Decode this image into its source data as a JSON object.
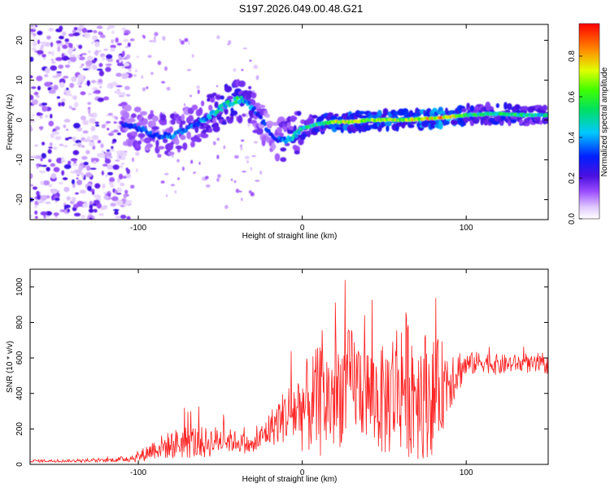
{
  "title": "S197.2026.049.00.48.G21",
  "chart_data": [
    {
      "type": "heatmap",
      "title": "S197.2026.049.00.48.G21",
      "xlabel": "Height of straight line (km)",
      "ylabel": "Frequency (Hz)",
      "xlim": [
        -166,
        150
      ],
      "ylim": [
        -25,
        24
      ],
      "xticks": [
        -100,
        0,
        100
      ],
      "yticks": [
        -20,
        -10,
        0,
        10,
        20
      ],
      "grid": false,
      "colorbar": {
        "label": "Normalized spectral amplitude",
        "range": [
          0,
          0.96
        ],
        "ticks": [
          "0.0",
          "0.2",
          "0.4",
          "0.6",
          "0.8"
        ],
        "colormap": "rainbow (purple to red)"
      },
      "ridge": {
        "description": "dominant frequency trace",
        "x": [
          -110,
          -100,
          -90,
          -80,
          -70,
          -60,
          -50,
          -40,
          -35,
          -30,
          -25,
          -20,
          -15,
          -10,
          -5,
          0,
          10,
          20,
          30,
          40,
          50,
          60,
          70,
          80,
          90,
          100,
          110,
          120,
          130,
          140,
          150
        ],
        "y": [
          -1,
          -2,
          -4,
          -4,
          -2,
          0,
          3,
          5,
          5,
          3,
          0,
          -3,
          -5,
          -5,
          -4,
          -2,
          -1,
          -0.5,
          -0.5,
          0,
          0,
          0,
          0.2,
          0.5,
          0.8,
          1.2,
          1.5,
          1.5,
          1.3,
          1.2,
          1.2
        ],
        "peak_amplitude": [
          0.3,
          0.35,
          0.35,
          0.4,
          0.35,
          0.45,
          0.5,
          0.6,
          0.5,
          0.4,
          0.35,
          0.3,
          0.35,
          0.45,
          0.5,
          0.55,
          0.6,
          0.8,
          0.75,
          0.7,
          0.8,
          0.75,
          0.8,
          0.85,
          0.9,
          0.6,
          0.55,
          0.6,
          0.6,
          0.55,
          0.5
        ]
      },
      "noise_region": {
        "x_range": [
          -166,
          -105
        ],
        "y_range": [
          -25,
          24
        ]
      }
    },
    {
      "type": "line",
      "xlabel": "Height of straight line (km)",
      "ylabel": "SNR (10 * v/v)",
      "xlim": [
        -166,
        150
      ],
      "ylim": [
        0,
        1100
      ],
      "xticks": [
        -100,
        0,
        100
      ],
      "yticks": [
        0,
        200,
        400,
        600,
        800,
        1000
      ],
      "grid": false,
      "series": [
        {
          "name": "SNR",
          "color": "#ff2020",
          "x": [
            -166,
            -140,
            -120,
            -110,
            -100,
            -90,
            -80,
            -70,
            -60,
            -50,
            -40,
            -30,
            -20,
            -10,
            0,
            10,
            20,
            30,
            40,
            50,
            60,
            70,
            80,
            90,
            100,
            110,
            120,
            130,
            140,
            150
          ],
          "mean": [
            20,
            20,
            22,
            30,
            40,
            90,
            110,
            130,
            120,
            140,
            130,
            100,
            200,
            280,
            320,
            350,
            380,
            480,
            400,
            350,
            480,
            420,
            380,
            500,
            560,
            580,
            560,
            570,
            560,
            560
          ],
          "amp": [
            8,
            8,
            10,
            15,
            30,
            60,
            80,
            100,
            90,
            80,
            60,
            50,
            100,
            160,
            250,
            320,
            320,
            300,
            280,
            320,
            420,
            400,
            330,
            200,
            70,
            60,
            60,
            50,
            50,
            50
          ]
        }
      ]
    }
  ],
  "colors": {
    "series_line": "#ff2020",
    "axis": "#000000",
    "background": "#ffffff"
  }
}
